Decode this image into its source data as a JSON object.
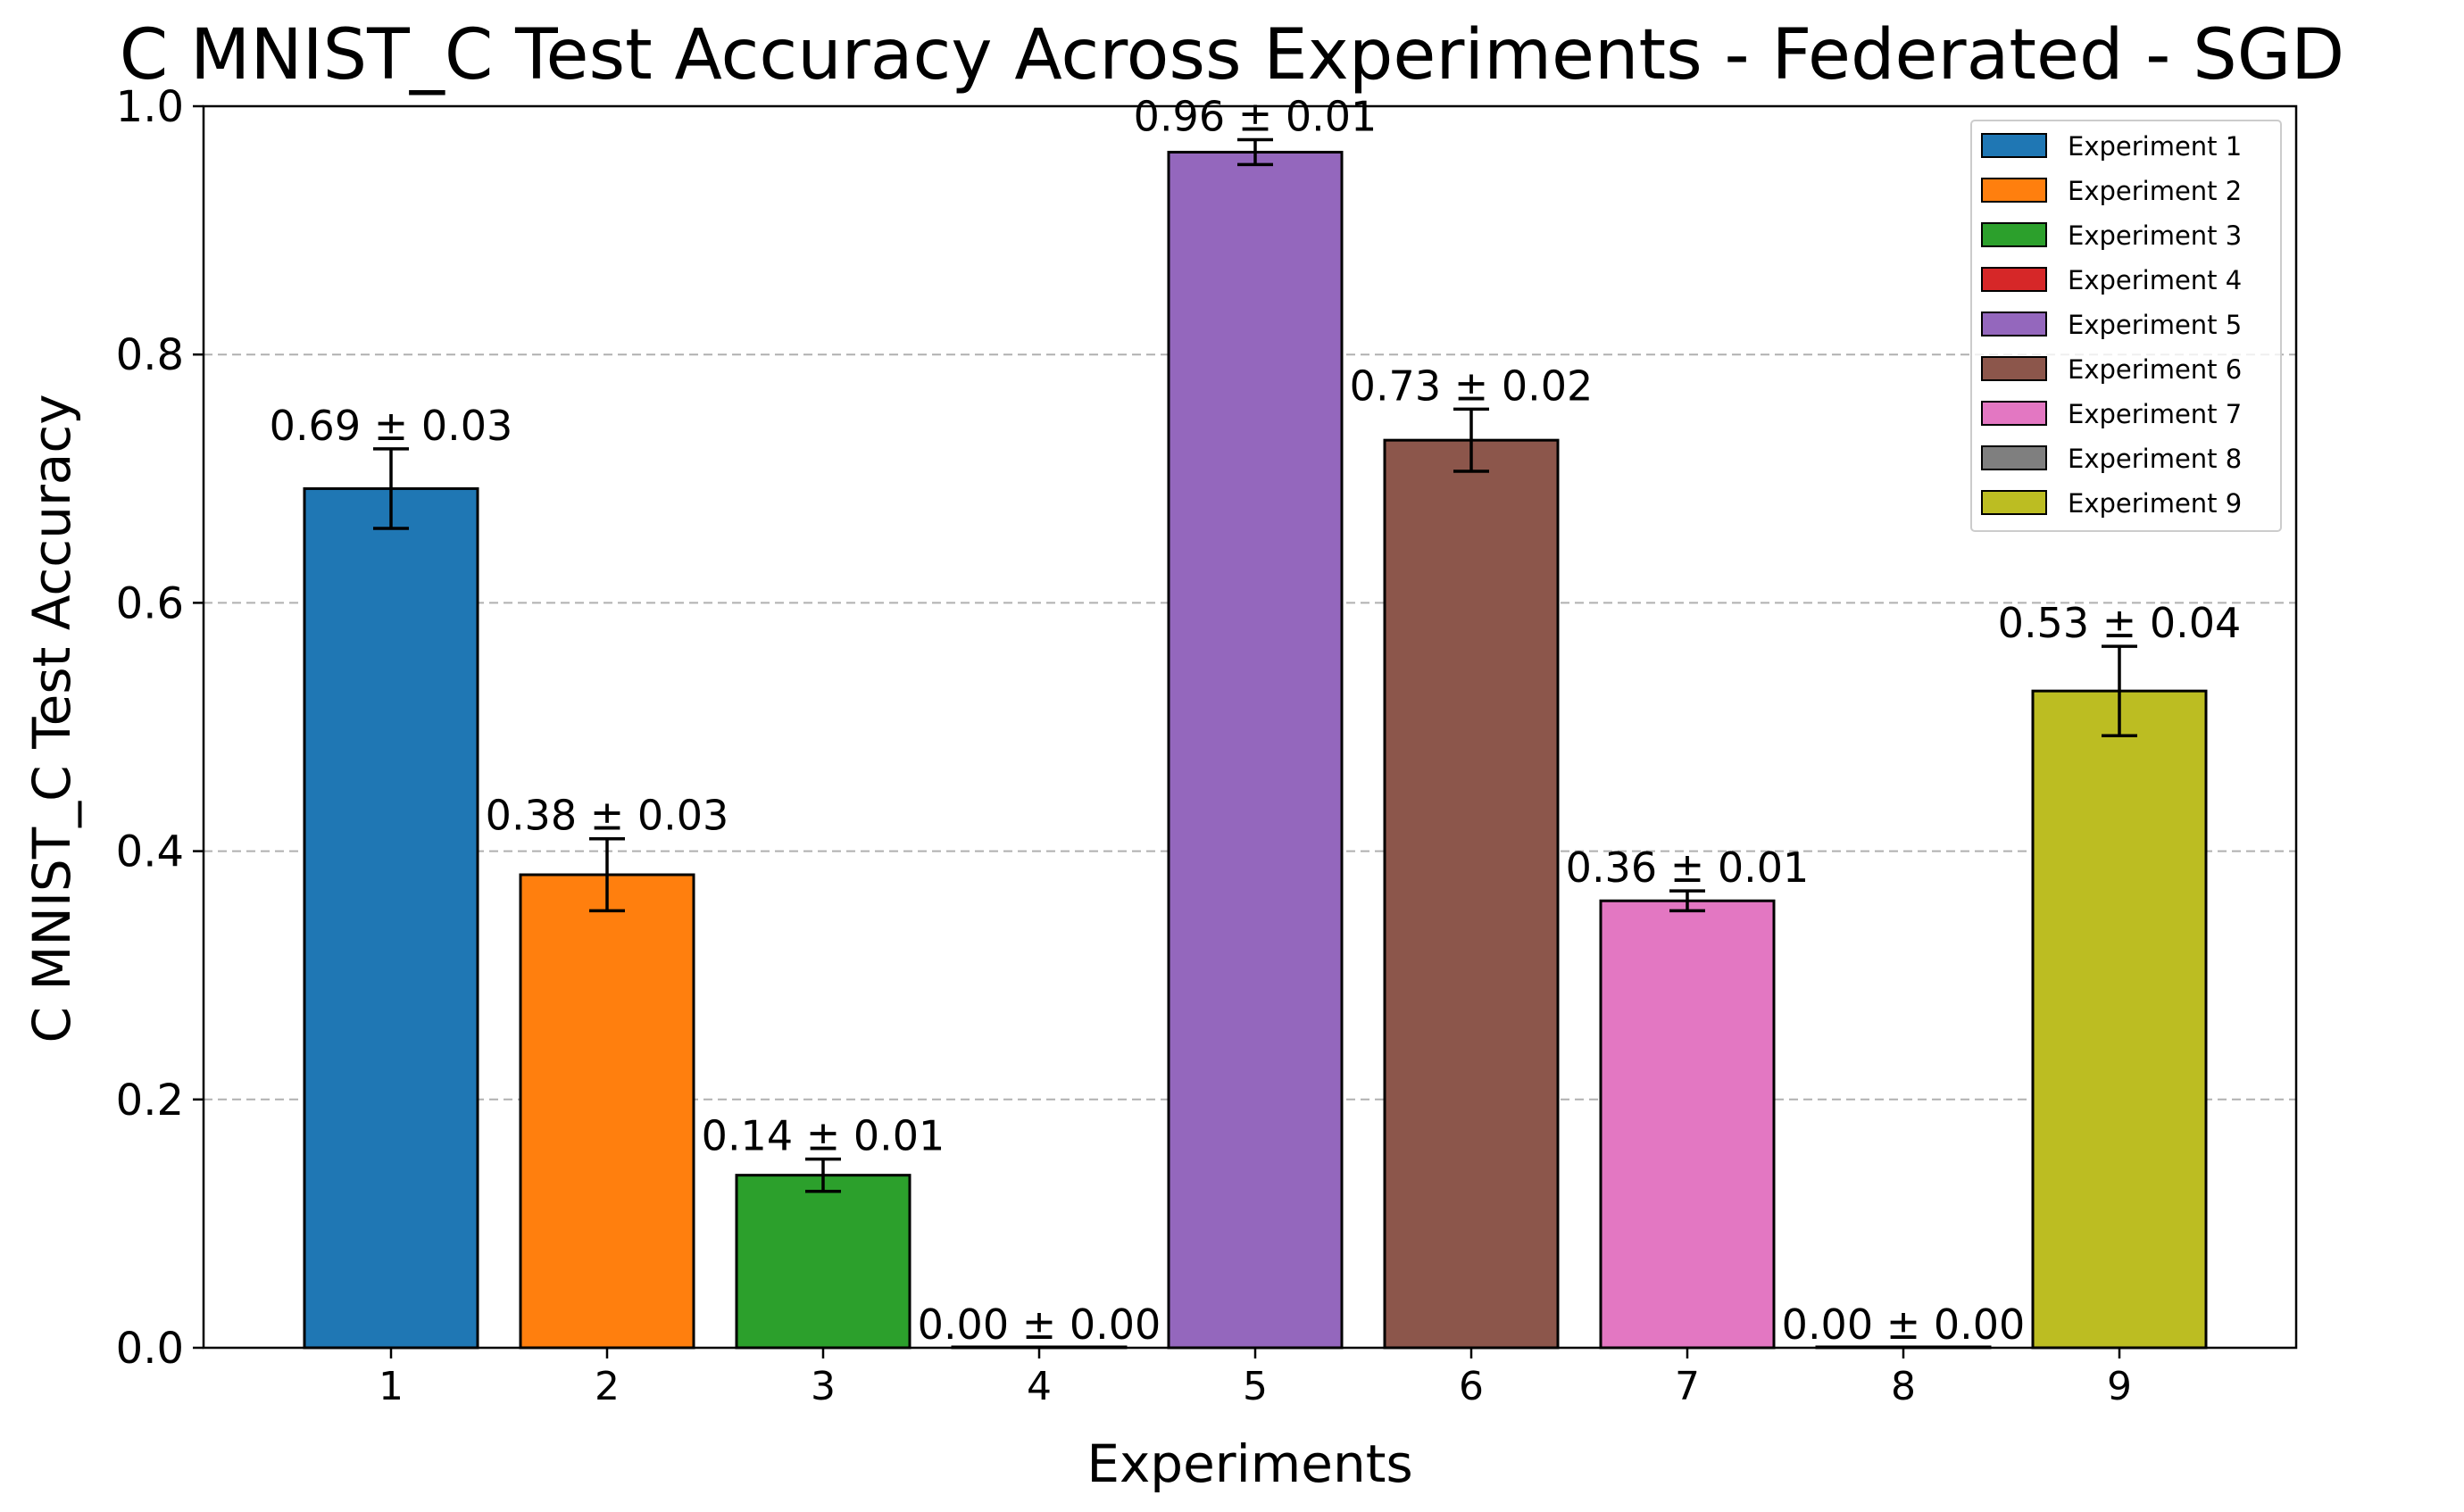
{
  "chart_data": {
    "type": "bar",
    "title": "C MNIST_C Test Accuracy Across Experiments - Federated - SGD",
    "xlabel": "Experiments",
    "ylabel": "C MNIST_C Test Accuracy",
    "ylim": [
      0,
      1.0
    ],
    "yticks": [
      "0.0",
      "0.2",
      "0.4",
      "0.6",
      "0.8",
      "1.0"
    ],
    "ytick_values": [
      0,
      0.2,
      0.4,
      0.6,
      0.8,
      1.0
    ],
    "grid": "horizontal dashed",
    "legend_position": "top-right",
    "categories": [
      "1",
      "2",
      "3",
      "4",
      "5",
      "6",
      "7",
      "8",
      "9"
    ],
    "values": [
      0.692,
      0.381,
      0.139,
      0.0,
      0.963,
      0.731,
      0.36,
      0.0,
      0.529
    ],
    "errors": [
      0.032,
      0.029,
      0.013,
      0.0,
      0.01,
      0.025,
      0.008,
      0.0,
      0.036
    ],
    "value_labels": [
      "0.69 ± 0.03",
      "0.38 ± 0.03",
      "0.14 ± 0.01",
      "0.00 ± 0.00",
      "0.96 ± 0.01",
      "0.73 ± 0.02",
      "0.36 ± 0.01",
      "0.00 ± 0.00",
      "0.53 ± 0.04"
    ],
    "series": [
      {
        "name": "Experiment 1",
        "color": "#1f77b4"
      },
      {
        "name": "Experiment 2",
        "color": "#ff7f0e"
      },
      {
        "name": "Experiment 3",
        "color": "#2ca02c"
      },
      {
        "name": "Experiment 4",
        "color": "#d62728"
      },
      {
        "name": "Experiment 5",
        "color": "#9467bd"
      },
      {
        "name": "Experiment 6",
        "color": "#8c564b"
      },
      {
        "name": "Experiment 7",
        "color": "#e377c2"
      },
      {
        "name": "Experiment 8",
        "color": "#7f7f7f"
      },
      {
        "name": "Experiment 9",
        "color": "#bcbd22"
      }
    ]
  }
}
